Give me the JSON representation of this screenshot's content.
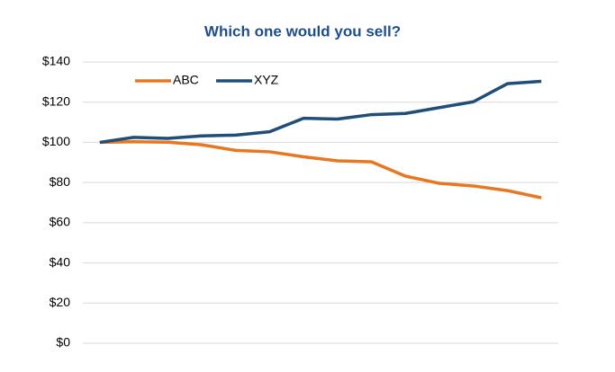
{
  "chart_data": {
    "type": "line",
    "title": "Which one would you sell?",
    "categories": [
      null,
      null,
      null,
      null,
      null,
      null,
      null,
      null,
      null,
      null,
      null,
      null,
      null,
      null
    ],
    "series": [
      {
        "name": "ABC",
        "color": "#e87722",
        "values": [
          100,
          100.3,
          100.1,
          98.8,
          96,
          95.3,
          92.8,
          90.8,
          90.3,
          83.2,
          79.6,
          78.3,
          76,
          72.4
        ]
      },
      {
        "name": "XYZ",
        "color": "#1f4e79",
        "values": [
          100,
          102.5,
          102,
          103.2,
          103.6,
          105.3,
          112,
          111.6,
          113.8,
          114.4,
          117.3,
          120.2,
          129.2,
          130.4
        ]
      }
    ],
    "ylim": [
      0,
      140
    ],
    "yticks": [
      {
        "value": 0,
        "label": "$0"
      },
      {
        "value": 20,
        "label": "$20"
      },
      {
        "value": 40,
        "label": "$40"
      },
      {
        "value": 60,
        "label": "$60"
      },
      {
        "value": 80,
        "label": "$80"
      },
      {
        "value": 100,
        "label": "$100"
      },
      {
        "value": 120,
        "label": "$120"
      },
      {
        "value": 140,
        "label": "$140"
      }
    ],
    "grid": true,
    "legend": "top-left"
  }
}
